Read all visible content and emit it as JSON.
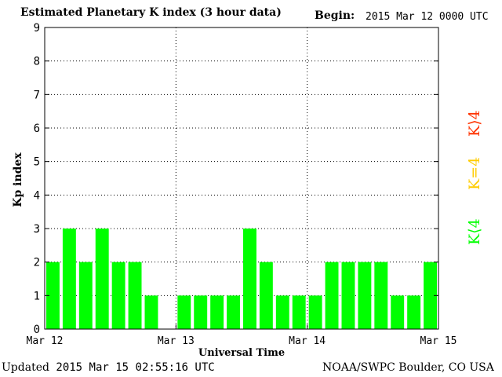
{
  "header": {
    "title": "Estimated Planetary K index (3 hour data)",
    "begin_label": "Begin:",
    "begin_value": "2015 Mar 12 0000 UTC"
  },
  "footer": {
    "updated_label": "Updated",
    "updated_value": "2015 Mar 15 02:55:16 UTC",
    "org": "NOAA/SWPC Boulder, CO USA"
  },
  "legend": {
    "k_less_4": {
      "text": "K⟨4",
      "color": "#00ff00"
    },
    "k_eq_4": {
      "text": "K=4",
      "color": "#ffcc00"
    },
    "k_greater_4": {
      "text": "K⟩4",
      "color": "#ff3300"
    }
  },
  "chart_data": {
    "type": "bar",
    "ylabel": "Kp index",
    "xlabel": "Universal Time",
    "ylim": [
      0,
      9
    ],
    "y_ticks": [
      "0",
      "1",
      "2",
      "3",
      "4",
      "5",
      "6",
      "7",
      "8",
      "9"
    ],
    "x_ticks": [
      "Mar 12",
      "Mar 13",
      "Mar 14",
      "Mar 15"
    ],
    "grid": true,
    "bar_color": "#00ff00",
    "values": [
      2,
      3,
      2,
      3,
      2,
      2,
      1,
      null,
      1,
      1,
      1,
      1,
      3,
      2,
      1,
      1,
      1,
      2,
      2,
      2,
      2,
      1,
      1,
      2
    ]
  }
}
